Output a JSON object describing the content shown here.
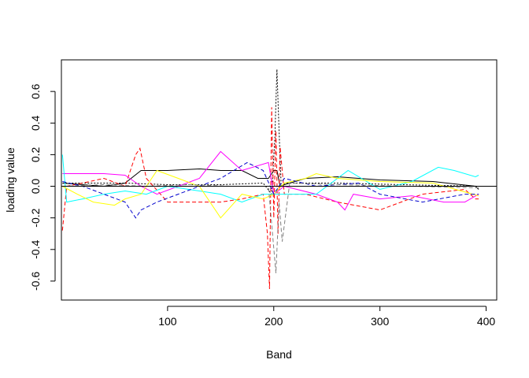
{
  "chart_data": {
    "type": "line",
    "title": "",
    "xlabel": "Band",
    "ylabel": "loading value",
    "xlim": [
      0,
      410
    ],
    "ylim": [
      -0.72,
      0.8
    ],
    "x_ticks": [
      100,
      200,
      300,
      400
    ],
    "y_ticks": [
      -0.6,
      -0.4,
      -0.2,
      0.0,
      0.2,
      0.4,
      0.6
    ],
    "grid": false,
    "legend": "none",
    "reference_line": 0,
    "series": [
      {
        "color": "#000000",
        "dash": "solid",
        "x": [
          1,
          20,
          40,
          60,
          75,
          80,
          100,
          130,
          150,
          170,
          185,
          195,
          200,
          203,
          206,
          210,
          230,
          260,
          300,
          350,
          390,
          393
        ],
        "y": [
          0.02,
          0.01,
          0.0,
          0.02,
          0.1,
          0.1,
          0.1,
          0.11,
          0.1,
          0.1,
          0.05,
          0.05,
          0.1,
          0.1,
          0.0,
          0.01,
          0.05,
          0.06,
          0.04,
          0.03,
          0.0,
          -0.02
        ]
      },
      {
        "color": "#000000",
        "dash": "dotted",
        "x": [
          1,
          20,
          60,
          100,
          150,
          190,
          198,
          201,
          203,
          205,
          207,
          212,
          260,
          320,
          393
        ],
        "y": [
          0.02,
          0.02,
          0.02,
          0.01,
          0.01,
          0.02,
          -0.05,
          0.3,
          0.74,
          0.35,
          0.0,
          0.02,
          0.02,
          0.01,
          0.0
        ]
      },
      {
        "color": "#ff0000",
        "dash": "dashed",
        "x": [
          1,
          5,
          20,
          40,
          60,
          70,
          74,
          80,
          100,
          130,
          150,
          170,
          190,
          194,
          196,
          198,
          200,
          202,
          204,
          206,
          210,
          230,
          260,
          300,
          340,
          380,
          390,
          393
        ],
        "y": [
          -0.28,
          0.0,
          0.02,
          0.05,
          0.0,
          0.2,
          0.24,
          0.05,
          -0.1,
          -0.1,
          -0.1,
          -0.08,
          -0.05,
          -0.3,
          -0.65,
          0.5,
          -0.2,
          0.35,
          -0.3,
          0.25,
          -0.05,
          -0.05,
          -0.1,
          -0.15,
          -0.05,
          -0.02,
          -0.08,
          -0.08
        ]
      },
      {
        "color": "#ff00ff",
        "dash": "solid",
        "x": [
          1,
          20,
          40,
          60,
          75,
          90,
          110,
          130,
          150,
          170,
          195,
          200,
          210,
          240,
          260,
          267,
          275,
          300,
          330,
          360,
          380,
          393
        ],
        "y": [
          0.08,
          0.08,
          0.08,
          0.07,
          0.0,
          -0.05,
          0.0,
          0.05,
          0.22,
          0.1,
          0.15,
          -0.05,
          0.0,
          -0.05,
          -0.1,
          -0.15,
          -0.05,
          -0.08,
          -0.06,
          -0.1,
          -0.1,
          -0.05
        ]
      },
      {
        "color": "#00ffff",
        "dash": "solid",
        "x": [
          1,
          5,
          20,
          40,
          60,
          80,
          100,
          130,
          150,
          170,
          190,
          210,
          240,
          270,
          300,
          330,
          355,
          370,
          390,
          393
        ],
        "y": [
          0.2,
          -0.1,
          -0.08,
          -0.05,
          -0.03,
          -0.05,
          0.0,
          -0.03,
          -0.05,
          -0.1,
          -0.05,
          -0.05,
          -0.05,
          0.1,
          -0.02,
          0.03,
          0.12,
          0.1,
          0.06,
          0.07
        ]
      },
      {
        "color": "#ffff00",
        "dash": "solid",
        "x": [
          1,
          15,
          30,
          50,
          60,
          75,
          90,
          110,
          130,
          150,
          170,
          190,
          200,
          210,
          230,
          240,
          260,
          300,
          350,
          393
        ],
        "y": [
          0.0,
          -0.05,
          -0.1,
          -0.12,
          -0.08,
          -0.05,
          0.1,
          0.05,
          0.0,
          -0.2,
          -0.05,
          -0.08,
          -0.05,
          0.02,
          0.05,
          0.08,
          0.05,
          0.03,
          0.02,
          -0.06
        ]
      },
      {
        "color": "#0000cd",
        "dash": "dashed",
        "x": [
          1,
          20,
          40,
          60,
          70,
          75,
          90,
          110,
          130,
          150,
          175,
          190,
          200,
          210,
          240,
          280,
          300,
          340,
          380,
          393
        ],
        "y": [
          0.03,
          0.0,
          -0.05,
          -0.1,
          -0.2,
          -0.15,
          -0.1,
          -0.05,
          0.0,
          0.05,
          0.15,
          0.1,
          -0.05,
          0.05,
          0.0,
          0.02,
          -0.05,
          -0.1,
          -0.05,
          -0.05
        ]
      },
      {
        "color": "#808080",
        "dash": "dashed",
        "x": [
          1,
          40,
          80,
          120,
          160,
          195,
          202,
          205,
          208,
          215,
          260,
          330,
          393
        ],
        "y": [
          0.0,
          0.01,
          0.0,
          0.01,
          0.0,
          0.0,
          -0.55,
          -0.1,
          -0.35,
          0.02,
          0.01,
          0.0,
          -0.01
        ]
      }
    ]
  }
}
